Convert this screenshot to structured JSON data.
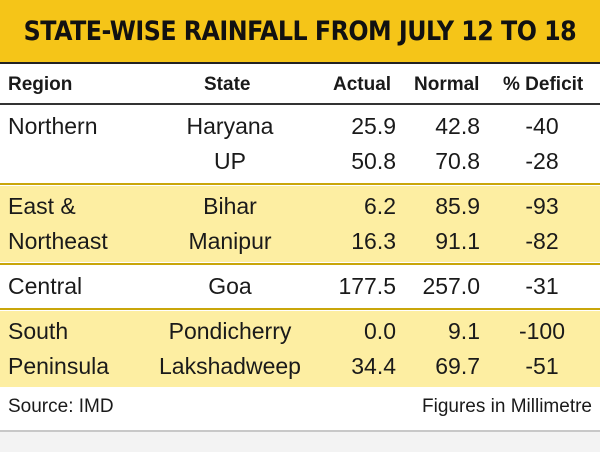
{
  "chart_data": {
    "type": "table",
    "title": "STATE-WISE RAINFALL FROM JULY 12 TO 18",
    "columns": [
      "Region",
      "State",
      "Actual",
      "Normal",
      "% Deficit"
    ],
    "groups": [
      {
        "region": [
          "Northern"
        ],
        "shaded": false,
        "rows": [
          {
            "state": "Haryana",
            "actual": "25.9",
            "normal": "42.8",
            "deficit": "-40"
          },
          {
            "state": "UP",
            "actual": "50.8",
            "normal": "70.8",
            "deficit": "-28"
          }
        ]
      },
      {
        "region": [
          "East &",
          "Northeast"
        ],
        "shaded": true,
        "rows": [
          {
            "state": "Bihar",
            "actual": "6.2",
            "normal": "85.9",
            "deficit": "-93"
          },
          {
            "state": "Manipur",
            "actual": "16.3",
            "normal": "91.1",
            "deficit": "-82"
          }
        ]
      },
      {
        "region": [
          "Central"
        ],
        "shaded": false,
        "rows": [
          {
            "state": "Goa",
            "actual": "177.5",
            "normal": "257.0",
            "deficit": "-31"
          }
        ]
      },
      {
        "region": [
          "South",
          "Peninsula"
        ],
        "shaded": true,
        "rows": [
          {
            "state": "Pondicherry",
            "actual": "0.0",
            "normal": "9.1",
            "deficit": "-100"
          },
          {
            "state": "Lakshadweep",
            "actual": "34.4",
            "normal": "69.7",
            "deficit": "-51"
          }
        ]
      }
    ],
    "source": "Source: IMD",
    "units": "Figures in Millimetre"
  },
  "colors": {
    "title_band": "#f5c518",
    "row_band": "#fdeea2",
    "separator": "#c9a60a"
  }
}
